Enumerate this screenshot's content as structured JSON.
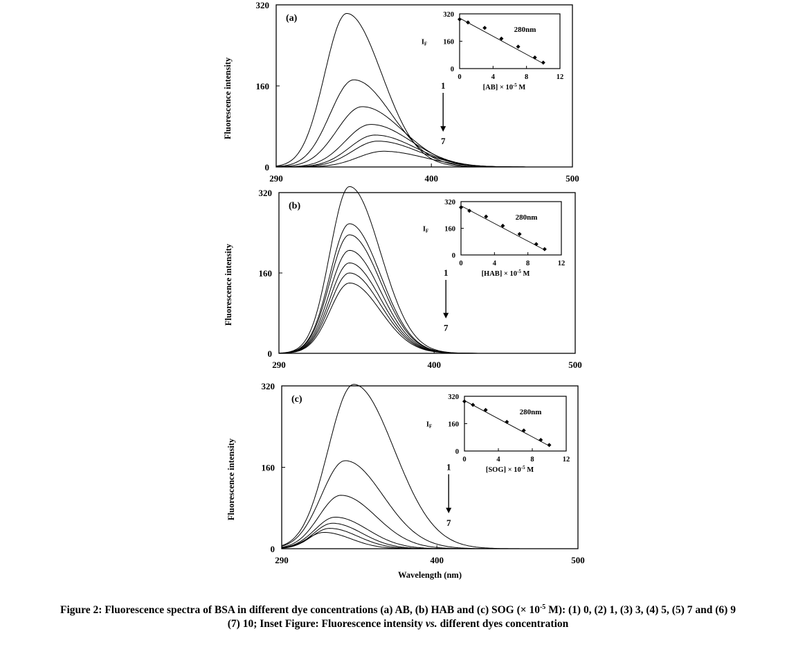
{
  "chart_data": [
    {
      "type": "line",
      "panel_label": "(a)",
      "ylabel": "Fluorescence intensity",
      "xlabel": "",
      "xlim": [
        290,
        500
      ],
      "ylim": [
        0,
        320
      ],
      "xticks": [
        290,
        400,
        500
      ],
      "yticks": [
        0,
        160,
        320
      ],
      "series_shape": "gaussian",
      "series": [
        {
          "peak_x": 340,
          "peak_y": 303,
          "width": 26
        },
        {
          "peak_x": 345,
          "peak_y": 172,
          "width": 28
        },
        {
          "peak_x": 351,
          "peak_y": 119,
          "width": 30
        },
        {
          "peak_x": 357,
          "peak_y": 84,
          "width": 30
        },
        {
          "peak_x": 360,
          "peak_y": 63,
          "width": 30
        },
        {
          "peak_x": 362,
          "peak_y": 51,
          "width": 30
        },
        {
          "peak_x": 366,
          "peak_y": 31,
          "width": 30
        }
      ],
      "annotation": {
        "top": "1",
        "bottom": "7",
        "x": 400,
        "y_top": 160,
        "y_bottom": 75
      },
      "inset": {
        "label": "280nm",
        "ylabel": "I",
        "ylabel_sub": "F",
        "xlabel_prefix": "[AB]",
        "xlabel_suffix": " × 10",
        "xlabel_exp": "-5",
        "xlabel_unit": " M",
        "xlim": [
          0,
          12
        ],
        "ylim": [
          0,
          320
        ],
        "xticks": [
          0,
          4,
          8,
          12
        ],
        "yticks": [
          0,
          160,
          320
        ],
        "points": [
          [
            0,
            288
          ],
          [
            1,
            270
          ],
          [
            3,
            238
          ],
          [
            5,
            175
          ],
          [
            7,
            128
          ],
          [
            9,
            65
          ],
          [
            10,
            35
          ]
        ],
        "fit": [
          [
            0,
            295
          ],
          [
            10,
            30
          ]
        ]
      }
    },
    {
      "type": "line",
      "panel_label": "(b)",
      "ylabel": "Fluorescence intensity",
      "xlabel": "",
      "xlim": [
        290,
        500
      ],
      "ylim": [
        0,
        320
      ],
      "xticks": [
        290,
        400,
        500
      ],
      "yticks": [
        0,
        160,
        320
      ],
      "series_shape": "gaussian",
      "series": [
        {
          "peak_x": 340,
          "peak_y": 332,
          "width": 23
        },
        {
          "peak_x": 340,
          "peak_y": 258,
          "width": 23
        },
        {
          "peak_x": 340,
          "peak_y": 236,
          "width": 23
        },
        {
          "peak_x": 340,
          "peak_y": 205,
          "width": 23
        },
        {
          "peak_x": 340,
          "peak_y": 180,
          "width": 23
        },
        {
          "peak_x": 340,
          "peak_y": 160,
          "width": 23
        },
        {
          "peak_x": 340,
          "peak_y": 140,
          "width": 23
        }
      ],
      "annotation": {
        "top": "1",
        "bottom": "7",
        "x": 400,
        "y_top": 160,
        "y_bottom": 75
      },
      "inset": {
        "label": "280nm",
        "ylabel": "I",
        "ylabel_sub": "F",
        "xlabel_prefix": "[HAB]",
        "xlabel_suffix": " × 10",
        "xlabel_exp": "-5",
        "xlabel_unit": " M",
        "xlim": [
          0,
          12
        ],
        "ylim": [
          0,
          320
        ],
        "xticks": [
          0,
          4,
          8,
          12
        ],
        "yticks": [
          0,
          160,
          320
        ],
        "points": [
          [
            0,
            285
          ],
          [
            1,
            265
          ],
          [
            3,
            230
          ],
          [
            5,
            175
          ],
          [
            7,
            125
          ],
          [
            9,
            65
          ],
          [
            10,
            35
          ]
        ],
        "fit": [
          [
            0,
            295
          ],
          [
            10,
            30
          ]
        ]
      }
    },
    {
      "type": "line",
      "panel_label": "(c)",
      "ylabel": "Fluorescence intensity",
      "xlabel": "Wavelength  (nm)",
      "xlim": [
        290,
        500
      ],
      "ylim": [
        0,
        320
      ],
      "xticks": [
        290,
        400,
        500
      ],
      "yticks": [
        0,
        160,
        320
      ],
      "series_shape": "gaussian",
      "series": [
        {
          "peak_x": 341,
          "peak_y": 323,
          "width": 30
        },
        {
          "peak_x": 335,
          "peak_y": 173,
          "width": 28
        },
        {
          "peak_x": 332,
          "peak_y": 105,
          "width": 26
        },
        {
          "peak_x": 328,
          "peak_y": 62,
          "width": 24
        },
        {
          "peak_x": 326,
          "peak_y": 50,
          "width": 22
        },
        {
          "peak_x": 324,
          "peak_y": 40,
          "width": 21
        },
        {
          "peak_x": 320,
          "peak_y": 32,
          "width": 20
        }
      ],
      "annotation": {
        "top": "1",
        "bottom": "7",
        "x": 400,
        "y_top": 160,
        "y_bottom": 75
      },
      "inset": {
        "label": "280nm",
        "ylabel": "I",
        "ylabel_sub": "F",
        "xlabel_prefix": "[SOG]",
        "xlabel_suffix": " × 10",
        "xlabel_exp": "-5",
        "xlabel_unit": " M",
        "xlim": [
          0,
          12
        ],
        "ylim": [
          0,
          320
        ],
        "xticks": [
          0,
          4,
          8,
          12
        ],
        "yticks": [
          0,
          160,
          320
        ],
        "points": [
          [
            0,
            290
          ],
          [
            1,
            270
          ],
          [
            2.5,
            240
          ],
          [
            5,
            170
          ],
          [
            7,
            120
          ],
          [
            9,
            65
          ],
          [
            10,
            35
          ]
        ],
        "fit": [
          [
            0,
            295
          ],
          [
            10,
            30
          ]
        ]
      }
    }
  ],
  "caption": {
    "line1_a": "Figure 2: Fluorescence spectra of BSA in different dye concentrations (a) AB, (b) HAB and (c) SOG (× 10",
    "line1_exp": "-5",
    "line1_b": " M): (1) 0, (2) 1, (3) 3, (4) 5, (5) 7 and (6) 9",
    "line2_a": "(7) 10; Inset Figure: Fluorescence intensity ",
    "line2_vs": "vs.",
    "line2_b": " different dyes concentration"
  }
}
